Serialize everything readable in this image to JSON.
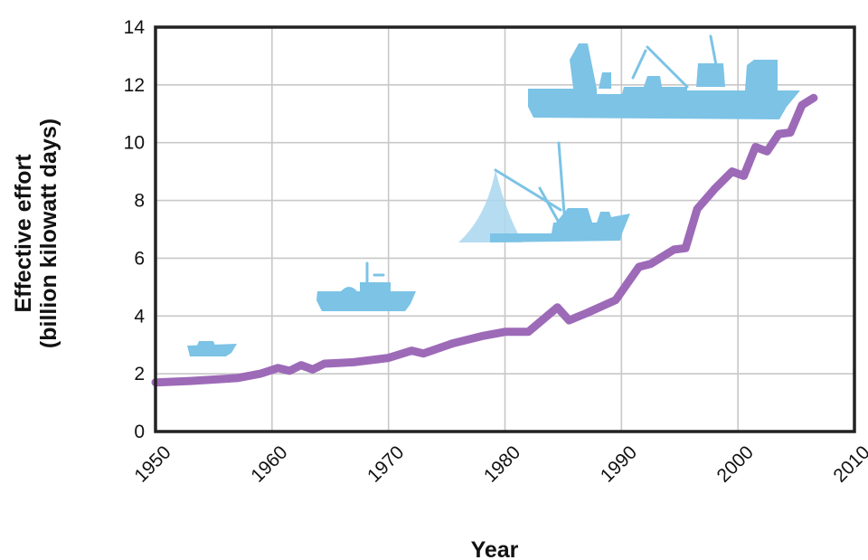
{
  "chart_data": {
    "type": "line",
    "title": "",
    "xlabel": "Year",
    "ylabel_lines": [
      "Effective effort",
      "(billion kilowatt days)"
    ],
    "xlim": [
      1950,
      2010
    ],
    "ylim": [
      0,
      14
    ],
    "x_ticks": [
      "1950",
      "1960",
      "1970",
      "1980",
      "1990",
      "2000",
      "2010"
    ],
    "y_ticks": [
      "0",
      "2",
      "4",
      "6",
      "8",
      "10",
      "12",
      "14"
    ],
    "grid": true,
    "series": [
      {
        "color": "#9d6ab8",
        "x": [
          1950,
          1953,
          1957,
          1959,
          1960.5,
          1961.5,
          1962.5,
          1963.5,
          1964.5,
          1967,
          1970,
          1972,
          1973,
          1975.5,
          1978,
          1980,
          1982,
          1984.5,
          1985.5,
          1987,
          1989.5,
          1991.5,
          1992.5,
          1994.5,
          1995.5,
          1996.5,
          1998,
          1999.5,
          2000.5,
          2001.5,
          2002.5,
          2003.5,
          2004.5,
          2005.5,
          2006.5
        ],
        "y": [
          1.7,
          1.75,
          1.85,
          2.0,
          2.2,
          2.1,
          2.3,
          2.15,
          2.35,
          2.4,
          2.55,
          2.8,
          2.7,
          3.05,
          3.3,
          3.45,
          3.45,
          4.3,
          3.85,
          4.1,
          4.55,
          5.7,
          5.8,
          6.3,
          6.35,
          7.7,
          8.4,
          9.0,
          8.85,
          9.85,
          9.7,
          10.3,
          10.35,
          11.3,
          11.55
        ]
      }
    ],
    "illustration_icons": [
      "small-boat-icon",
      "trawler-icon",
      "fishing-vessel-with-net-icon",
      "factory-ship-icon"
    ]
  }
}
